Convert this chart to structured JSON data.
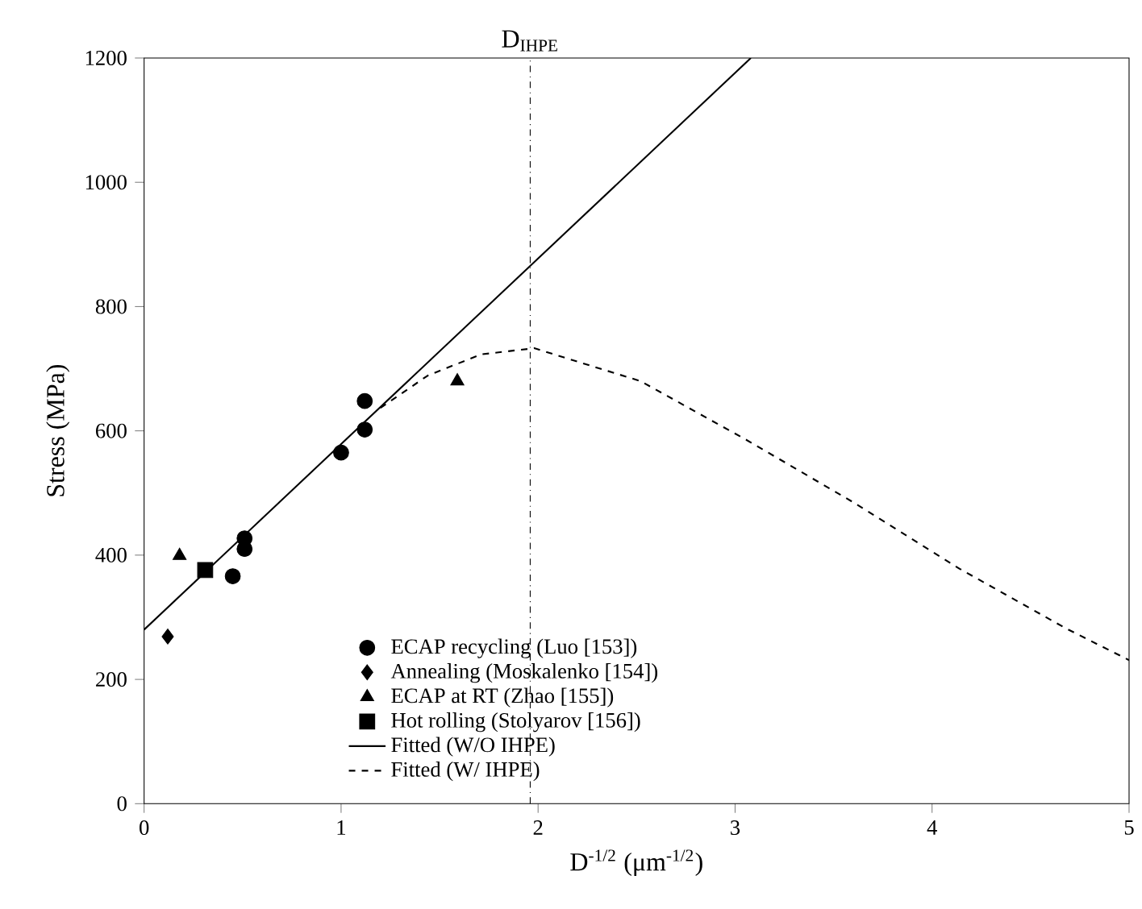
{
  "chart_data": {
    "type": "scatter",
    "xlabel": "D$^{-1/2}$ (μm$^{-1/2}$)",
    "ylabel": "Stress (MPa)",
    "xlim": [
      0,
      5
    ],
    "ylim": [
      0,
      1200
    ],
    "xticks": [
      0,
      1,
      2,
      3,
      4,
      5
    ],
    "yticks": [
      0,
      200,
      400,
      600,
      800,
      1000,
      1200
    ],
    "grid": false,
    "legend": "bottom",
    "ref_lines": [
      {
        "axis": "x",
        "value": 1.96,
        "label": "D$_{IHPE}$",
        "line_style": "dashdot",
        "color": "#000000"
      }
    ],
    "series": [
      {
        "name": "ECAP recycling (Luo [153])",
        "marker": "circle",
        "color": "#000000",
        "x": [
          1.12,
          1.12,
          1.0,
          0.51,
          0.51,
          0.45
        ],
        "values": [
          648,
          602,
          565,
          427,
          410,
          366
        ]
      },
      {
        "name": "Annealing (Moskalenko [154])",
        "marker": "diamond",
        "color": "#000000",
        "x": [
          0.12
        ],
        "values": [
          269
        ]
      },
      {
        "name": "ECAP at RT (Zhao [155])",
        "marker": "triangle",
        "color": "#000000",
        "x": [
          0.18,
          1.59
        ],
        "values": [
          399,
          680
        ]
      },
      {
        "name": "Hot rolling (Stolyarov [156])",
        "marker": "square",
        "color": "#000000",
        "x": [
          0.31
        ],
        "values": [
          376
        ]
      },
      {
        "name": "Fitted (W/O IHPE)",
        "type": "line",
        "marker": "none",
        "line_style": "solid",
        "color": "#000000",
        "x": [
          0,
          3.08
        ],
        "values": [
          280,
          1200
        ]
      },
      {
        "name": "Fitted (W/ IHPE)",
        "type": "line",
        "marker": "none",
        "line_style": "dashed",
        "color": "#000000",
        "x": [
          1.2,
          1.44,
          1.71,
          1.98,
          2.52,
          3.06,
          3.6,
          4.14,
          4.68,
          5.0
        ],
        "values": [
          637,
          689,
          723,
          733,
          680,
          585,
          485,
          378,
          282,
          231
        ]
      }
    ]
  }
}
